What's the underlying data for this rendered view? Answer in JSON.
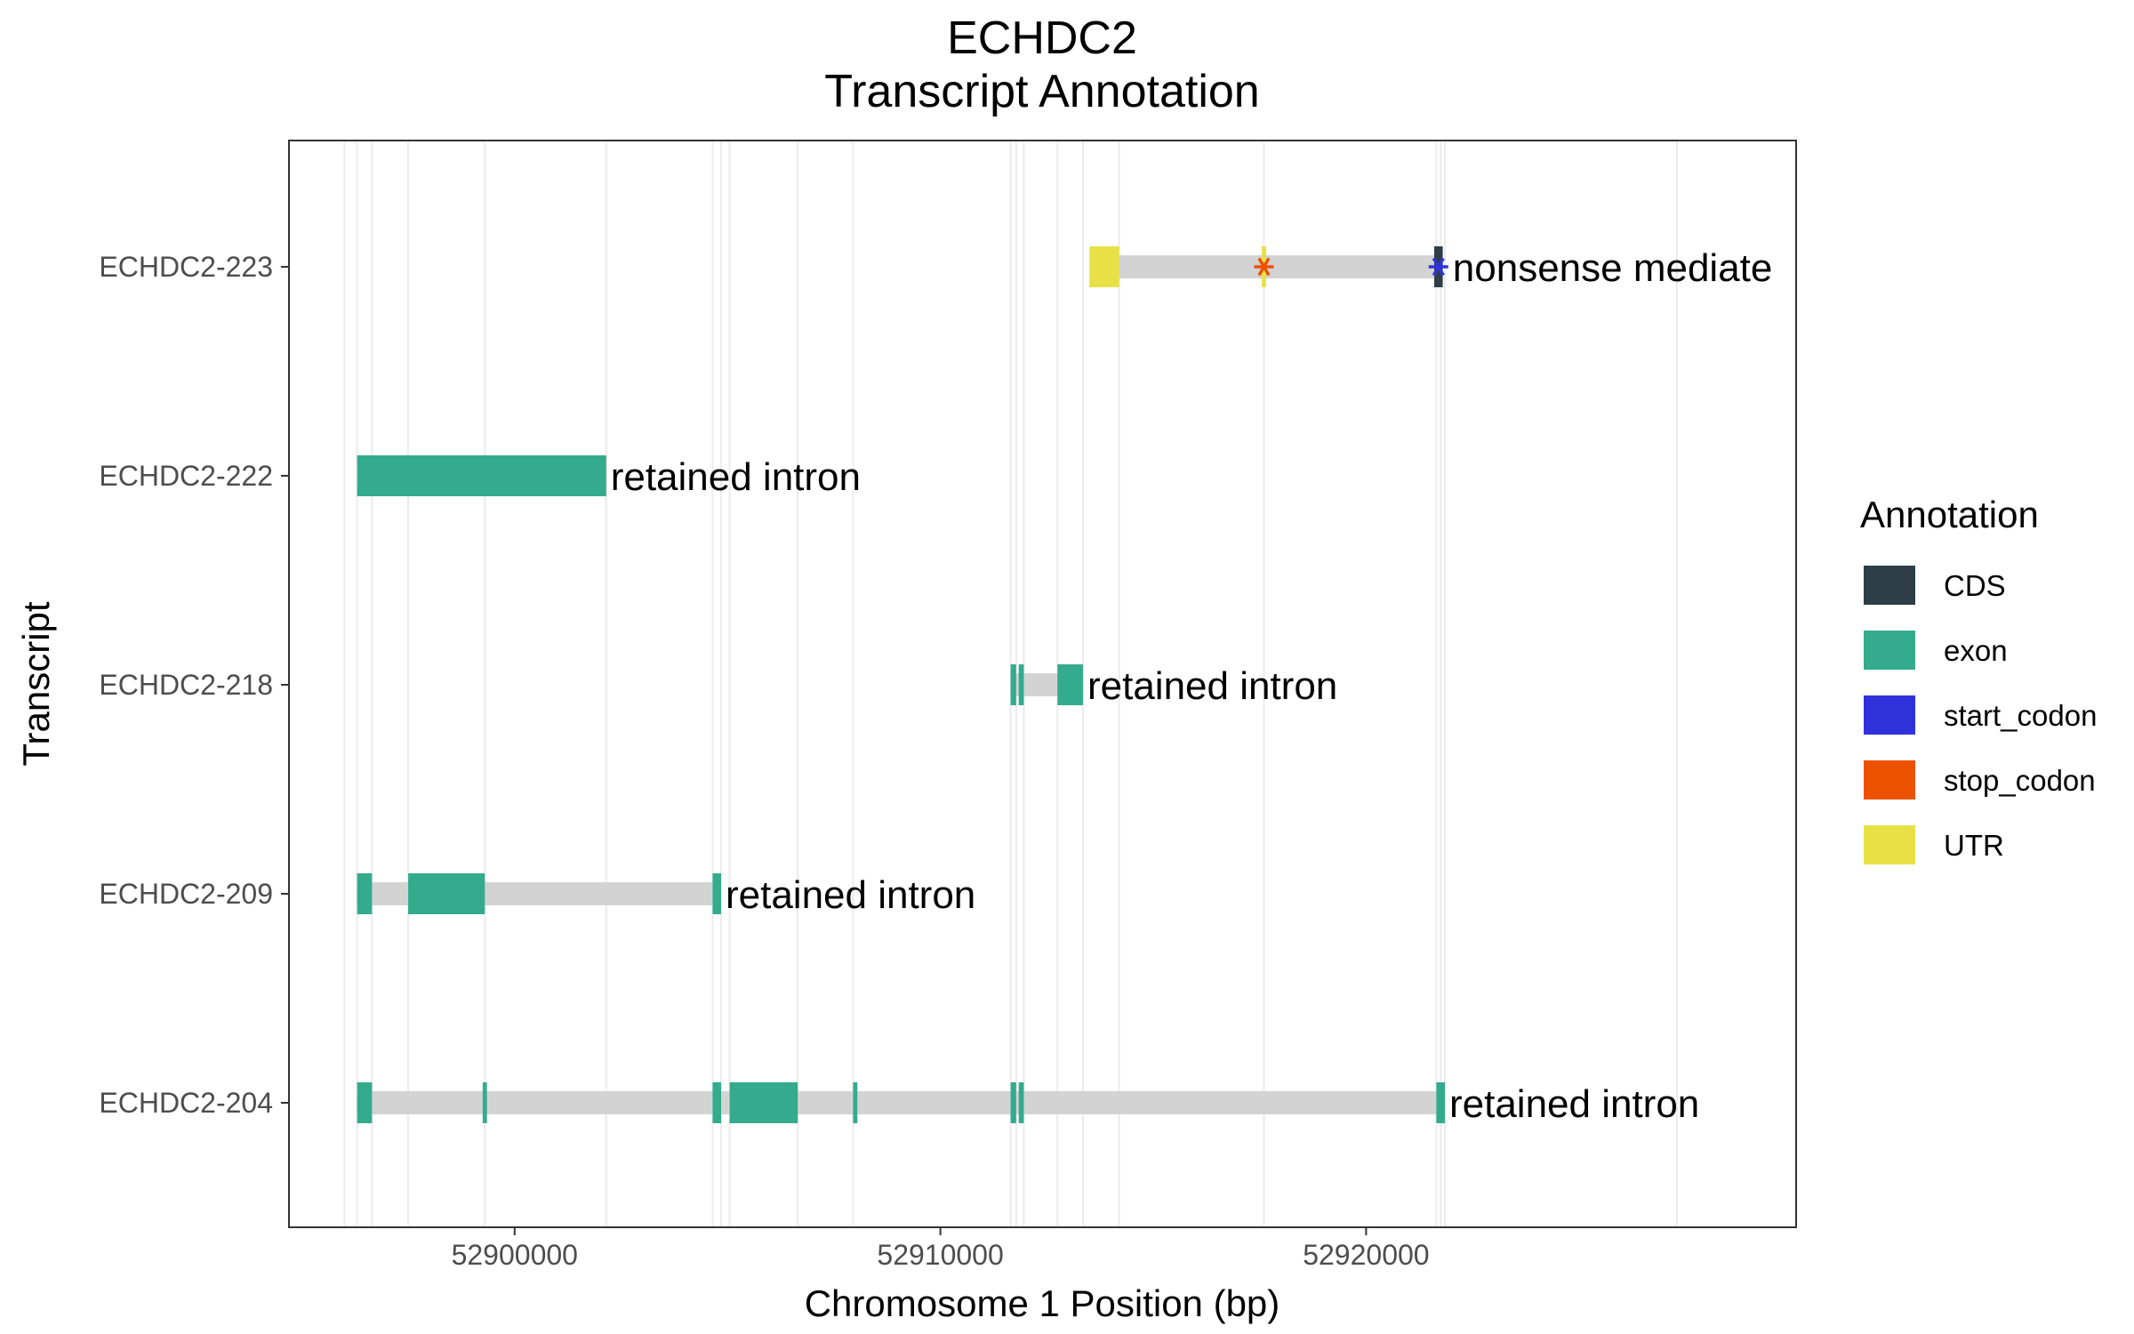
{
  "chart_data": {
    "type": "gene-track",
    "title": [
      "ECHDC2",
      "Transcript Annotation"
    ],
    "xlabel": "Chromosome 1 Position (bp)",
    "ylabel": "Transcript",
    "xlim": [
      52894700,
      52930100
    ],
    "x_ticks": [
      52900000,
      52910000,
      52920000
    ],
    "x_tick_labels": [
      "52900000",
      "52910000",
      "52920000"
    ],
    "grid": true,
    "legend_position": "right",
    "legend": {
      "title": "Annotation",
      "entries": [
        {
          "label": "CDS",
          "color": "#2d3e46"
        },
        {
          "label": "exon",
          "color": "#33ab8c"
        },
        {
          "label": "start_codon",
          "color": "#2f32db"
        },
        {
          "label": "stop_codon",
          "color": "#ec5200"
        },
        {
          "label": "UTR",
          "color": "#e8e145"
        }
      ]
    },
    "intron_color": "#d3d3d3",
    "transcripts": [
      {
        "name": "ECHDC2-223",
        "biotype": "nonsense mediate",
        "introns": [
          [
            52914200,
            52921750
          ]
        ],
        "features": [
          {
            "type": "UTR",
            "start": 52913500,
            "end": 52914200
          },
          {
            "type": "UTR",
            "start": 52917550,
            "end": 52917650
          },
          {
            "type": "CDS",
            "start": 52921600,
            "end": 52921800
          }
        ],
        "markers": [
          {
            "type": "stop_codon",
            "pos": 52917600
          },
          {
            "type": "start_codon",
            "pos": 52921700
          }
        ]
      },
      {
        "name": "ECHDC2-222",
        "biotype": "retained intron",
        "introns": [],
        "features": [
          {
            "type": "exon",
            "start": 52896300,
            "end": 52902150
          }
        ],
        "markers": []
      },
      {
        "name": "ECHDC2-218",
        "biotype": "retained intron",
        "introns": [
          [
            52911650,
            52913350
          ]
        ],
        "features": [
          {
            "type": "exon",
            "start": 52911650,
            "end": 52911780
          },
          {
            "type": "exon",
            "start": 52911840,
            "end": 52911960
          },
          {
            "type": "exon",
            "start": 52912750,
            "end": 52913350
          }
        ],
        "markers": []
      },
      {
        "name": "ECHDC2-209",
        "biotype": "retained intron",
        "introns": [
          [
            52896300,
            52904850
          ]
        ],
        "features": [
          {
            "type": "exon",
            "start": 52896300,
            "end": 52896650
          },
          {
            "type": "exon",
            "start": 52897500,
            "end": 52899300
          },
          {
            "type": "exon",
            "start": 52904650,
            "end": 52904850
          }
        ],
        "markers": []
      },
      {
        "name": "ECHDC2-204",
        "biotype": "retained intron",
        "introns": [
          [
            52896300,
            52921850
          ]
        ],
        "features": [
          {
            "type": "exon",
            "start": 52896300,
            "end": 52896650
          },
          {
            "type": "exon",
            "start": 52899250,
            "end": 52899350
          },
          {
            "type": "exon",
            "start": 52904650,
            "end": 52904850
          },
          {
            "type": "exon",
            "start": 52905050,
            "end": 52906650
          },
          {
            "type": "exon",
            "start": 52907950,
            "end": 52908050
          },
          {
            "type": "exon",
            "start": 52911650,
            "end": 52911780
          },
          {
            "type": "exon",
            "start": 52911840,
            "end": 52911960
          },
          {
            "type": "exon",
            "start": 52921650,
            "end": 52921850
          }
        ],
        "markers": []
      }
    ],
    "vertical_guides": [
      52896000,
      52896300,
      52896650,
      52897500,
      52899300,
      52902150,
      52904650,
      52904850,
      52905050,
      52906650,
      52907950,
      52911650,
      52911780,
      52911960,
      52912750,
      52913350,
      52914200,
      52917600,
      52921650,
      52921750,
      52921850,
      52927300
    ]
  }
}
